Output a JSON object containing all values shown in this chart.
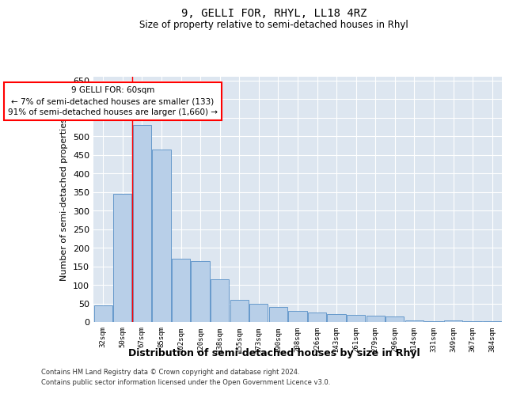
{
  "title": "9, GELLI FOR, RHYL, LL18 4RZ",
  "subtitle": "Size of property relative to semi-detached houses in Rhyl",
  "xlabel": "Distribution of semi-detached houses by size in Rhyl",
  "ylabel": "Number of semi-detached properties",
  "categories": [
    "32sqm",
    "50sqm",
    "67sqm",
    "85sqm",
    "102sqm",
    "120sqm",
    "138sqm",
    "155sqm",
    "173sqm",
    "190sqm",
    "208sqm",
    "226sqm",
    "243sqm",
    "261sqm",
    "279sqm",
    "296sqm",
    "314sqm",
    "331sqm",
    "349sqm",
    "367sqm",
    "384sqm"
  ],
  "values": [
    45,
    345,
    530,
    465,
    170,
    165,
    115,
    60,
    50,
    40,
    30,
    25,
    22,
    20,
    18,
    15,
    5,
    3,
    5,
    3,
    2
  ],
  "bar_color": "#b8cfe8",
  "bar_edge_color": "#6699cc",
  "red_line_x": 1.5,
  "annotation_text": "9 GELLI FOR: 60sqm\n← 7% of semi-detached houses are smaller (133)\n91% of semi-detached houses are larger (1,660) →",
  "annotation_box_color": "white",
  "annotation_box_edge": "red",
  "ylim": [
    0,
    660
  ],
  "yticks": [
    0,
    50,
    100,
    150,
    200,
    250,
    300,
    350,
    400,
    450,
    500,
    550,
    600,
    650
  ],
  "background_color": "#dde6f0",
  "grid_color": "white",
  "footer_line1": "Contains HM Land Registry data © Crown copyright and database right 2024.",
  "footer_line2": "Contains public sector information licensed under the Open Government Licence v3.0."
}
